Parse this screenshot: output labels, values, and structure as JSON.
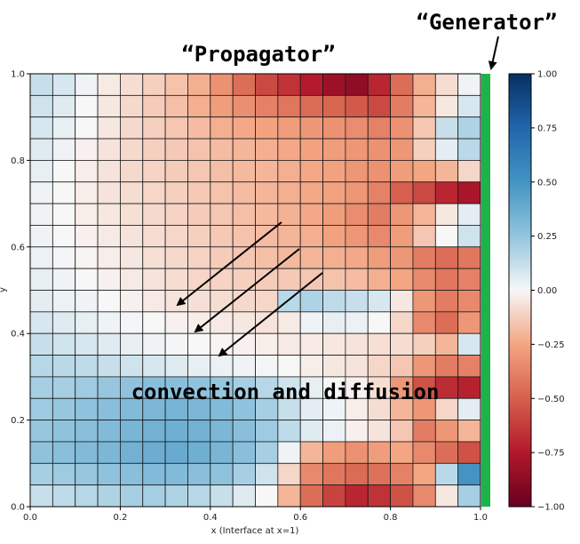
{
  "chart_data": {
    "type": "heatmap",
    "title": "",
    "xlabel": "x (Interface at x=1)",
    "ylabel": "y",
    "xlim": [
      0,
      1
    ],
    "ylim": [
      0,
      1
    ],
    "x_ticks": [
      "0.0",
      "0.2",
      "0.4",
      "0.6",
      "0.8",
      "1.0"
    ],
    "y_ticks": [
      "0.0",
      "0.2",
      "0.4",
      "0.6",
      "0.8",
      "1.0"
    ],
    "grid_cols": 20,
    "grid_rows": 20,
    "colormap": "RdBu",
    "clim": [
      -1,
      1
    ],
    "colorbar_ticks": [
      "1.00",
      "0.75",
      "0.50",
      "0.25",
      "0.00",
      "−0.25",
      "−0.50",
      "−0.75",
      "−1.00"
    ],
    "colorbar_tick_values": [
      1.0,
      0.75,
      0.5,
      0.25,
      0.0,
      -0.25,
      -0.5,
      -0.75,
      -1.0
    ],
    "values_top_to_bottom": [
      [
        0.12,
        0.08,
        0.02,
        -0.04,
        -0.08,
        -0.12,
        -0.16,
        -0.22,
        -0.32,
        -0.45,
        -0.58,
        -0.66,
        -0.74,
        -0.82,
        -0.86,
        -0.7,
        -0.45,
        -0.22,
        -0.08,
        0.02
      ],
      [
        0.1,
        0.06,
        0.0,
        -0.05,
        -0.09,
        -0.13,
        -0.17,
        -0.22,
        -0.28,
        -0.33,
        -0.38,
        -0.42,
        -0.46,
        -0.48,
        -0.52,
        -0.58,
        -0.4,
        -0.2,
        -0.05,
        0.08
      ],
      [
        0.08,
        0.04,
        0.0,
        -0.05,
        -0.09,
        -0.12,
        -0.15,
        -0.18,
        -0.22,
        -0.24,
        -0.26,
        -0.28,
        -0.3,
        -0.32,
        -0.34,
        -0.38,
        -0.32,
        -0.15,
        0.12,
        0.18
      ],
      [
        0.06,
        0.02,
        -0.02,
        -0.06,
        -0.09,
        -0.12,
        -0.14,
        -0.16,
        -0.18,
        -0.2,
        -0.22,
        -0.24,
        -0.26,
        -0.28,
        -0.3,
        -0.32,
        -0.3,
        -0.12,
        0.05,
        0.15
      ],
      [
        0.04,
        0.0,
        -0.03,
        -0.06,
        -0.09,
        -0.11,
        -0.13,
        -0.15,
        -0.17,
        -0.19,
        -0.2,
        -0.22,
        -0.24,
        -0.26,
        -0.3,
        -0.32,
        -0.28,
        -0.25,
        -0.2,
        -0.1
      ],
      [
        0.02,
        0.0,
        -0.03,
        -0.06,
        -0.08,
        -0.1,
        -0.12,
        -0.14,
        -0.16,
        -0.18,
        -0.2,
        -0.22,
        -0.24,
        -0.26,
        -0.3,
        -0.38,
        -0.5,
        -0.58,
        -0.7,
        -0.78
      ],
      [
        0.02,
        0.0,
        -0.03,
        -0.05,
        -0.07,
        -0.09,
        -0.11,
        -0.13,
        -0.15,
        -0.17,
        -0.19,
        -0.21,
        -0.24,
        -0.28,
        -0.34,
        -0.4,
        -0.3,
        -0.2,
        -0.05,
        0.05
      ],
      [
        0.02,
        0.0,
        -0.02,
        -0.04,
        -0.06,
        -0.08,
        -0.1,
        -0.12,
        -0.14,
        -0.16,
        -0.18,
        -0.2,
        -0.22,
        -0.26,
        -0.3,
        -0.35,
        -0.28,
        -0.15,
        0.0,
        0.1
      ],
      [
        0.03,
        0.01,
        -0.01,
        -0.03,
        -0.05,
        -0.07,
        -0.09,
        -0.11,
        -0.13,
        -0.15,
        -0.17,
        -0.19,
        -0.2,
        -0.22,
        -0.24,
        -0.28,
        -0.3,
        -0.4,
        -0.45,
        -0.42
      ],
      [
        0.04,
        0.02,
        0.0,
        -0.02,
        -0.04,
        -0.06,
        -0.08,
        -0.1,
        -0.11,
        -0.12,
        -0.13,
        -0.14,
        -0.15,
        -0.16,
        -0.18,
        -0.22,
        -0.25,
        -0.35,
        -0.42,
        -0.38
      ],
      [
        0.05,
        0.03,
        0.02,
        0.0,
        -0.02,
        -0.04,
        -0.06,
        -0.07,
        -0.08,
        -0.09,
        -0.1,
        0.15,
        0.18,
        0.14,
        0.12,
        0.08,
        -0.05,
        -0.3,
        -0.4,
        -0.35
      ],
      [
        0.08,
        0.06,
        0.04,
        0.02,
        0.01,
        0.0,
        -0.02,
        -0.03,
        -0.04,
        -0.05,
        -0.06,
        -0.04,
        0.02,
        0.04,
        0.03,
        0.0,
        -0.1,
        -0.35,
        -0.45,
        -0.3
      ],
      [
        0.12,
        0.1,
        0.08,
        0.06,
        0.04,
        0.02,
        0.01,
        0.0,
        -0.01,
        -0.02,
        -0.03,
        -0.04,
        -0.04,
        -0.05,
        -0.06,
        -0.07,
        -0.08,
        -0.12,
        -0.2,
        0.08
      ],
      [
        0.16,
        0.15,
        0.14,
        0.12,
        0.1,
        0.08,
        0.06,
        0.04,
        0.03,
        0.02,
        0.01,
        0.0,
        -0.03,
        -0.05,
        -0.06,
        -0.1,
        -0.15,
        -0.3,
        -0.4,
        -0.38
      ],
      [
        0.2,
        0.2,
        0.22,
        0.24,
        0.26,
        0.28,
        0.28,
        0.26,
        0.24,
        0.2,
        0.16,
        0.1,
        0.04,
        0.0,
        -0.02,
        -0.08,
        -0.3,
        -0.55,
        -0.68,
        -0.72
      ],
      [
        0.22,
        0.24,
        0.26,
        0.28,
        0.3,
        0.32,
        0.34,
        0.32,
        0.3,
        0.26,
        0.2,
        0.12,
        0.05,
        0.02,
        -0.03,
        -0.08,
        -0.2,
        -0.3,
        -0.1,
        0.05
      ],
      [
        0.24,
        0.26,
        0.28,
        0.3,
        0.33,
        0.35,
        0.36,
        0.35,
        0.32,
        0.28,
        0.22,
        0.14,
        0.06,
        0.03,
        -0.02,
        -0.06,
        -0.15,
        -0.4,
        -0.3,
        -0.2
      ],
      [
        0.26,
        0.28,
        0.3,
        0.32,
        0.35,
        0.37,
        0.38,
        0.36,
        0.33,
        0.28,
        0.2,
        0.02,
        -0.2,
        -0.28,
        -0.32,
        -0.28,
        -0.25,
        -0.35,
        -0.45,
        -0.55
      ],
      [
        0.2,
        0.22,
        0.24,
        0.26,
        0.28,
        0.3,
        0.3,
        0.28,
        0.26,
        0.2,
        0.1,
        -0.1,
        -0.35,
        -0.42,
        -0.46,
        -0.44,
        -0.38,
        -0.25,
        0.15,
        0.5
      ],
      [
        0.12,
        0.14,
        0.16,
        0.18,
        0.2,
        0.2,
        0.18,
        0.16,
        0.12,
        0.06,
        0.0,
        -0.2,
        -0.45,
        -0.6,
        -0.7,
        -0.66,
        -0.55,
        -0.35,
        -0.05,
        0.2
      ]
    ],
    "interface_bar_color": "#1eb34a",
    "annotations": [
      "“Generator”",
      "“Propagator”",
      "convection and diffusion"
    ]
  }
}
